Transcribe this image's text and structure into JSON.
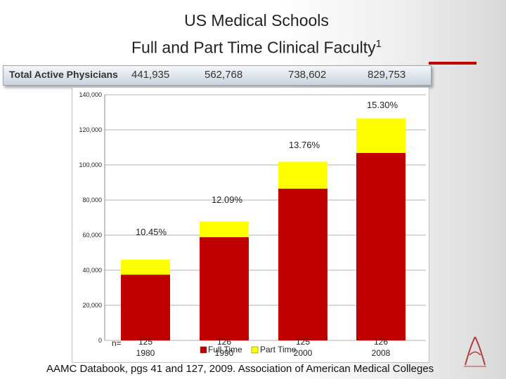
{
  "title_line1": "US Medical Schools",
  "title_line2": "Full and Part Time Clinical Faculty",
  "title_superscript": "1",
  "physicians": {
    "label": "Total Active Physicians",
    "values": [
      "441,935",
      "562,768",
      "738,602",
      "829,753"
    ]
  },
  "footer": "AAMC Databook, pgs 41 and 127, 2009. Association of American Medical Colleges",
  "colors": {
    "full_time": "#c00000",
    "part_time": "#ffff00",
    "accent": "#c00000"
  },
  "chart_data": {
    "type": "bar",
    "stacked": true,
    "categories": [
      "1980",
      "1990",
      "2000",
      "2008"
    ],
    "n_prefix": "n=",
    "n_values": [
      "125",
      "126",
      "125",
      "126"
    ],
    "series": [
      {
        "name": "Full Time",
        "values": [
          37500,
          58800,
          86500,
          106800
        ]
      },
      {
        "name": "Part Time",
        "values": [
          8500,
          9000,
          15300,
          19800
        ]
      }
    ],
    "part_time_percent_labels": [
      "10.45%",
      "12.09%",
      "13.76%",
      "15.30%"
    ],
    "y_ticks": [
      "0",
      "20,000",
      "40,000",
      "60,000",
      "80,000",
      "100,000",
      "120,000",
      "140,000"
    ],
    "ylim": [
      0,
      140000
    ],
    "grid": true,
    "legend_position": "bottom"
  }
}
